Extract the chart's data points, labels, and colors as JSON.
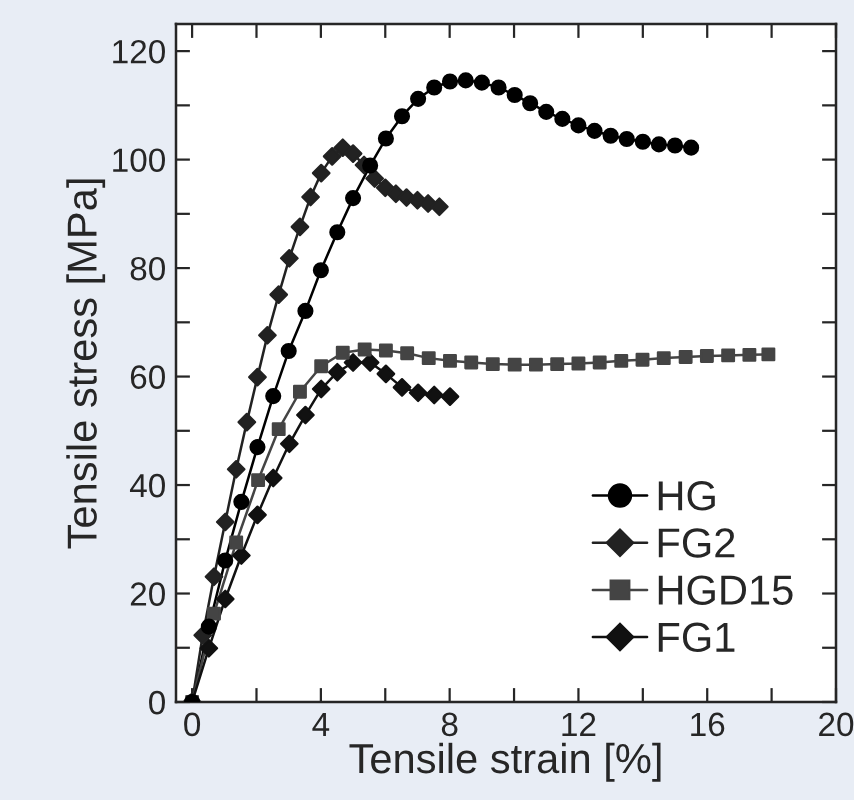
{
  "chart_data": {
    "type": "line",
    "xlabel": "Tensile strain [%]",
    "ylabel": "Tensile stress [MPa]",
    "xlim": [
      -0.5,
      20
    ],
    "ylim": [
      0,
      125
    ],
    "xticks": [
      0,
      {
        "value": 2,
        "label": null
      },
      4,
      {
        "value": 6,
        "label": null
      },
      8,
      {
        "value": 10,
        "label": null
      },
      12,
      {
        "value": 14,
        "label": null
      },
      16,
      {
        "value": 18,
        "label": null
      },
      20
    ],
    "yticks": [
      0,
      {
        "value": 10,
        "label": null
      },
      20,
      {
        "value": 30,
        "label": null
      },
      40,
      {
        "value": 50,
        "label": null
      },
      60,
      {
        "value": 70,
        "label": null
      },
      80,
      {
        "value": 90,
        "label": null
      },
      100,
      {
        "value": 110,
        "label": null
      },
      120
    ],
    "grid": false,
    "legend": "bottom right",
    "line_style": "solid",
    "series": [
      {
        "name": "HG",
        "color": "#000000",
        "marker": "circle",
        "x": [
          0,
          0.52,
          1.03,
          1.53,
          2.03,
          2.52,
          3.0,
          3.52,
          4.0,
          4.51,
          5.0,
          5.53,
          6.02,
          6.52,
          7.02,
          7.52,
          8.01,
          8.5,
          9.0,
          9.52,
          10.02,
          10.5,
          11.0,
          11.5,
          12.0,
          12.5,
          13.0,
          13.5,
          14.0,
          14.5,
          15.0,
          15.5
        ],
        "values": [
          0,
          13.9,
          26.1,
          36.9,
          47,
          56.4,
          64.7,
          72.1,
          79.6,
          86.6,
          92.9,
          98.9,
          103.9,
          108,
          111.2,
          113.3,
          114.4,
          114.6,
          114.2,
          113.3,
          111.9,
          110.4,
          108.8,
          107.5,
          106.3,
          105.3,
          104.4,
          103.8,
          103.3,
          102.8,
          102.6,
          102.2
        ]
      },
      {
        "name": "FG2",
        "color": "#222222",
        "marker": "diamond",
        "x": [
          0,
          0.33,
          0.68,
          1.03,
          1.37,
          1.7,
          2.03,
          2.34,
          2.69,
          3.02,
          3.35,
          3.68,
          4.01,
          4.35,
          4.68,
          5.0,
          5.34,
          5.67,
          6.0,
          6.33,
          6.66,
          7.0,
          7.33,
          7.68
        ],
        "values": [
          0,
          12.3,
          23.1,
          33.2,
          42.9,
          51.6,
          59.9,
          67.6,
          75.1,
          81.8,
          87.6,
          93.1,
          97.5,
          100.6,
          102.2,
          101.1,
          99,
          96.5,
          94.8,
          93.7,
          93,
          92.5,
          91.9,
          91.3
        ]
      },
      {
        "name": "HGD15",
        "color": "#444444",
        "marker": "square",
        "x": [
          0,
          0.68,
          1.37,
          2.05,
          2.69,
          3.35,
          4.01,
          4.68,
          5.36,
          6.02,
          6.68,
          7.35,
          8.01,
          8.67,
          9.34,
          10.02,
          10.68,
          11.34,
          12.0,
          12.66,
          13.33,
          13.99,
          14.65,
          15.33,
          15.99,
          16.65,
          17.31,
          17.9
        ],
        "values": [
          0,
          16.3,
          29.4,
          40.9,
          50.3,
          57.2,
          61.9,
          64.4,
          65,
          64.8,
          64.3,
          63.4,
          62.9,
          62.6,
          62.3,
          62.2,
          62.2,
          62.3,
          62.4,
          62.6,
          62.9,
          63.1,
          63.4,
          63.6,
          63.8,
          63.9,
          64.0,
          64.1
        ]
      },
      {
        "name": "FG1",
        "color": "#111111",
        "marker": "diamond",
        "x": [
          0,
          0.52,
          1.03,
          1.53,
          2.03,
          2.52,
          3.02,
          3.52,
          4.01,
          4.51,
          5.0,
          5.53,
          6.02,
          6.52,
          7.02,
          7.52,
          8.01
        ],
        "values": [
          0,
          9.9,
          19,
          27,
          34.5,
          41.3,
          47.6,
          52.9,
          57.7,
          60.8,
          62.6,
          62.6,
          60.5,
          58,
          57,
          56.6,
          56.3
        ]
      }
    ]
  }
}
